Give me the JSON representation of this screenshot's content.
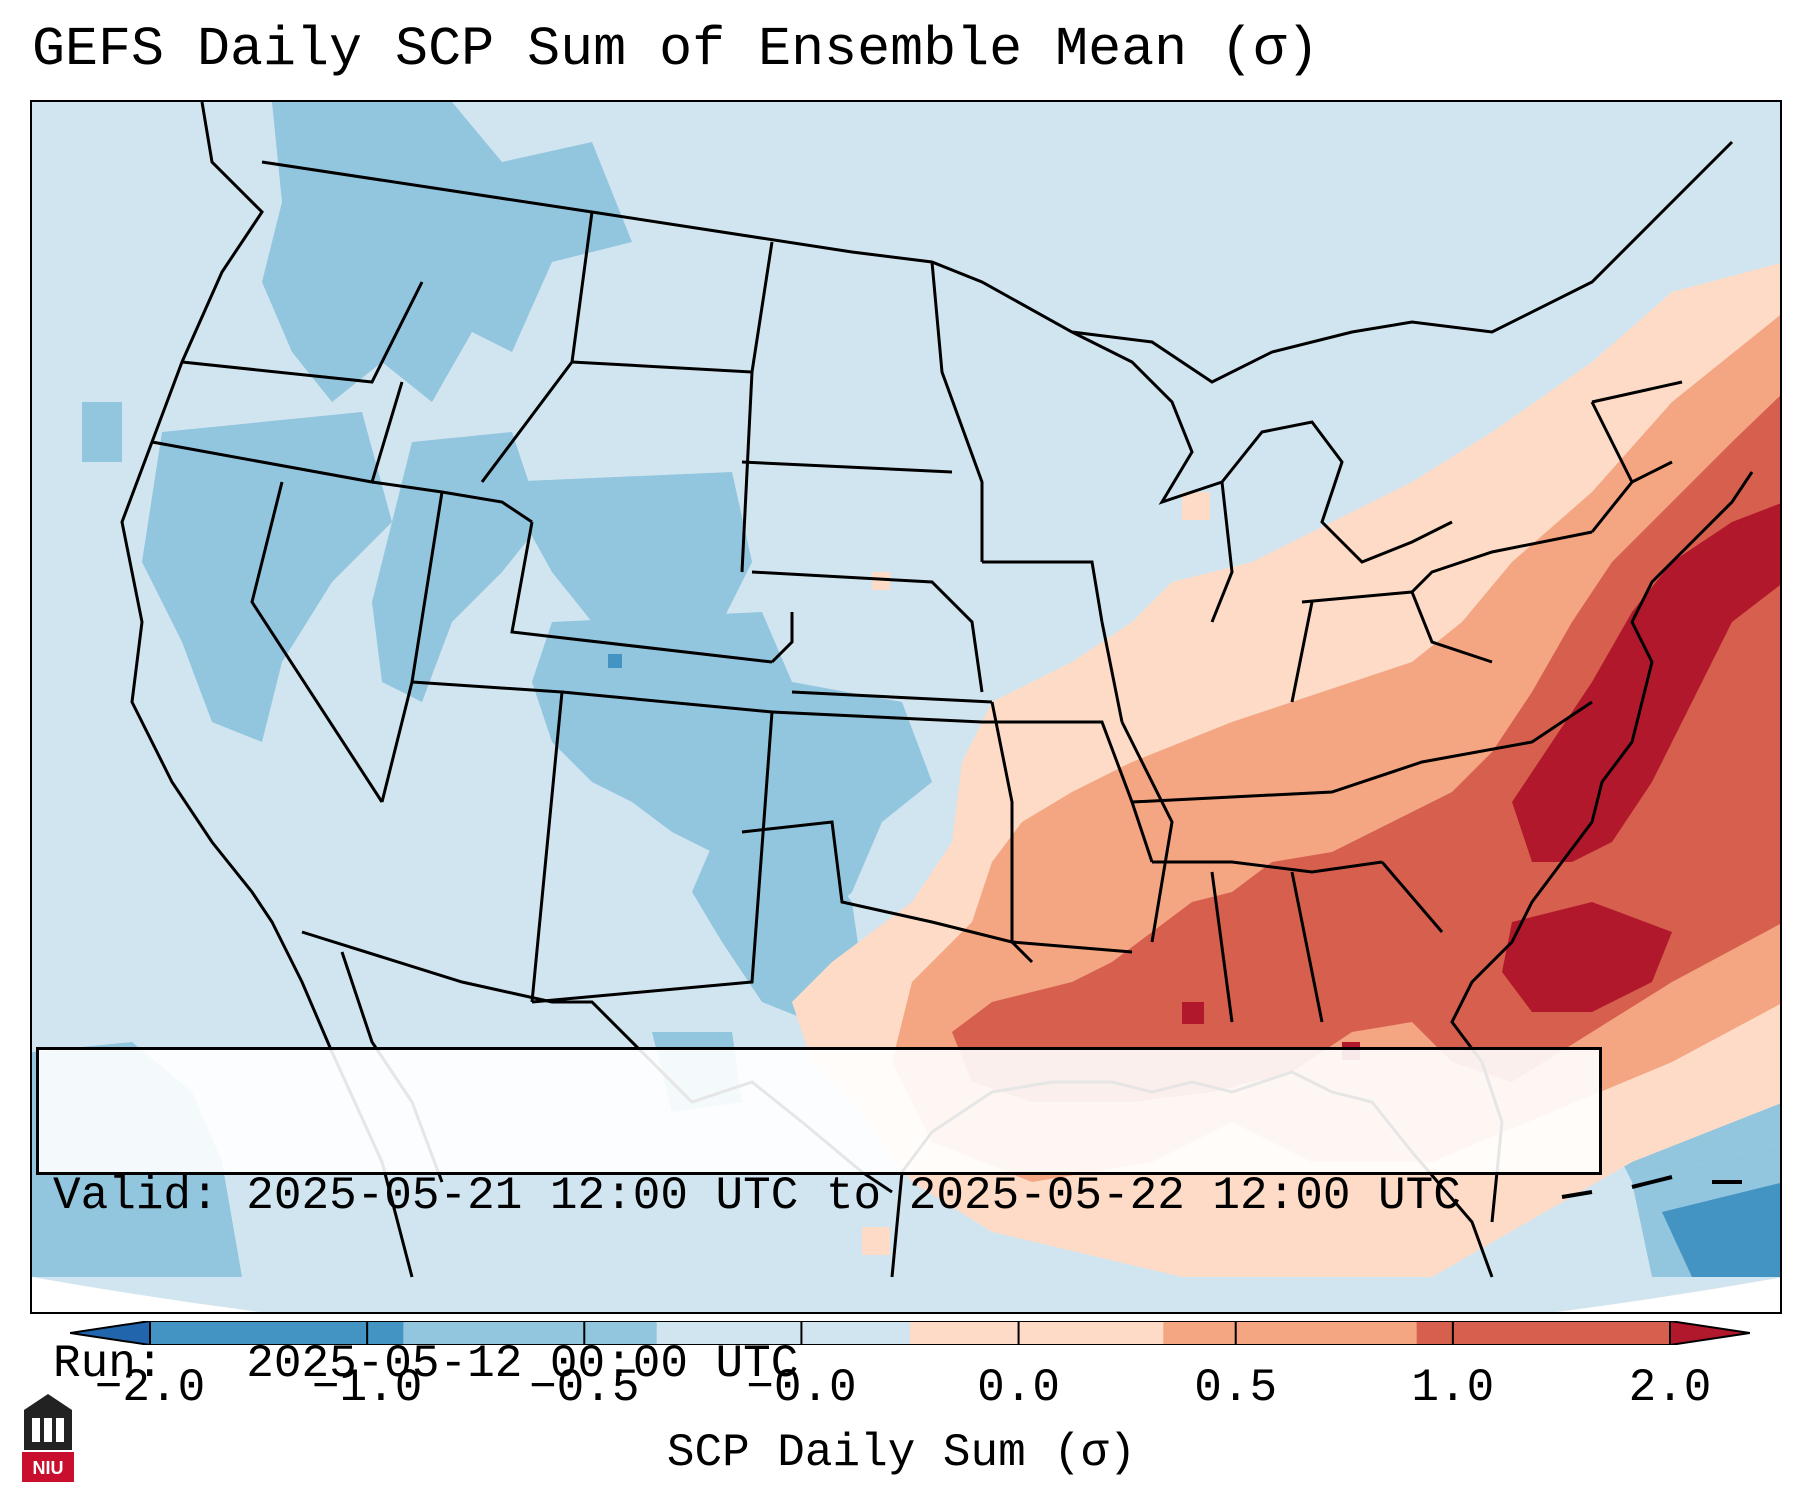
{
  "title": "GEFS Daily SCP Sum of Ensemble Mean (σ)",
  "info": {
    "valid_label": "Valid:",
    "valid_value": "2025-05-21 12:00 UTC to 2025-05-22 12:00 UTC",
    "run_label": "Run:",
    "run_value": "2025-05-12 00:00 UTC"
  },
  "colorbar": {
    "label": "SCP Daily Sum (σ)",
    "ticks": [
      "−2.0",
      "−1.0",
      "−0.5",
      "−0.0",
      "0.0",
      "0.5",
      "1.0",
      "2.0"
    ],
    "bin_colors": [
      "#4393c3",
      "#92c5de",
      "#d1e5f0",
      "#fddbc7",
      "#f4a582",
      "#d6604d"
    ],
    "under_color": "#2166ac",
    "over_color": "#b2182b"
  },
  "map": {
    "ocean_color": "#d1e5f0",
    "land_color": "#d1e5f0",
    "border_color": "#000000"
  },
  "logo": {
    "text": "NIU",
    "icon": "university-seal-icon"
  }
}
